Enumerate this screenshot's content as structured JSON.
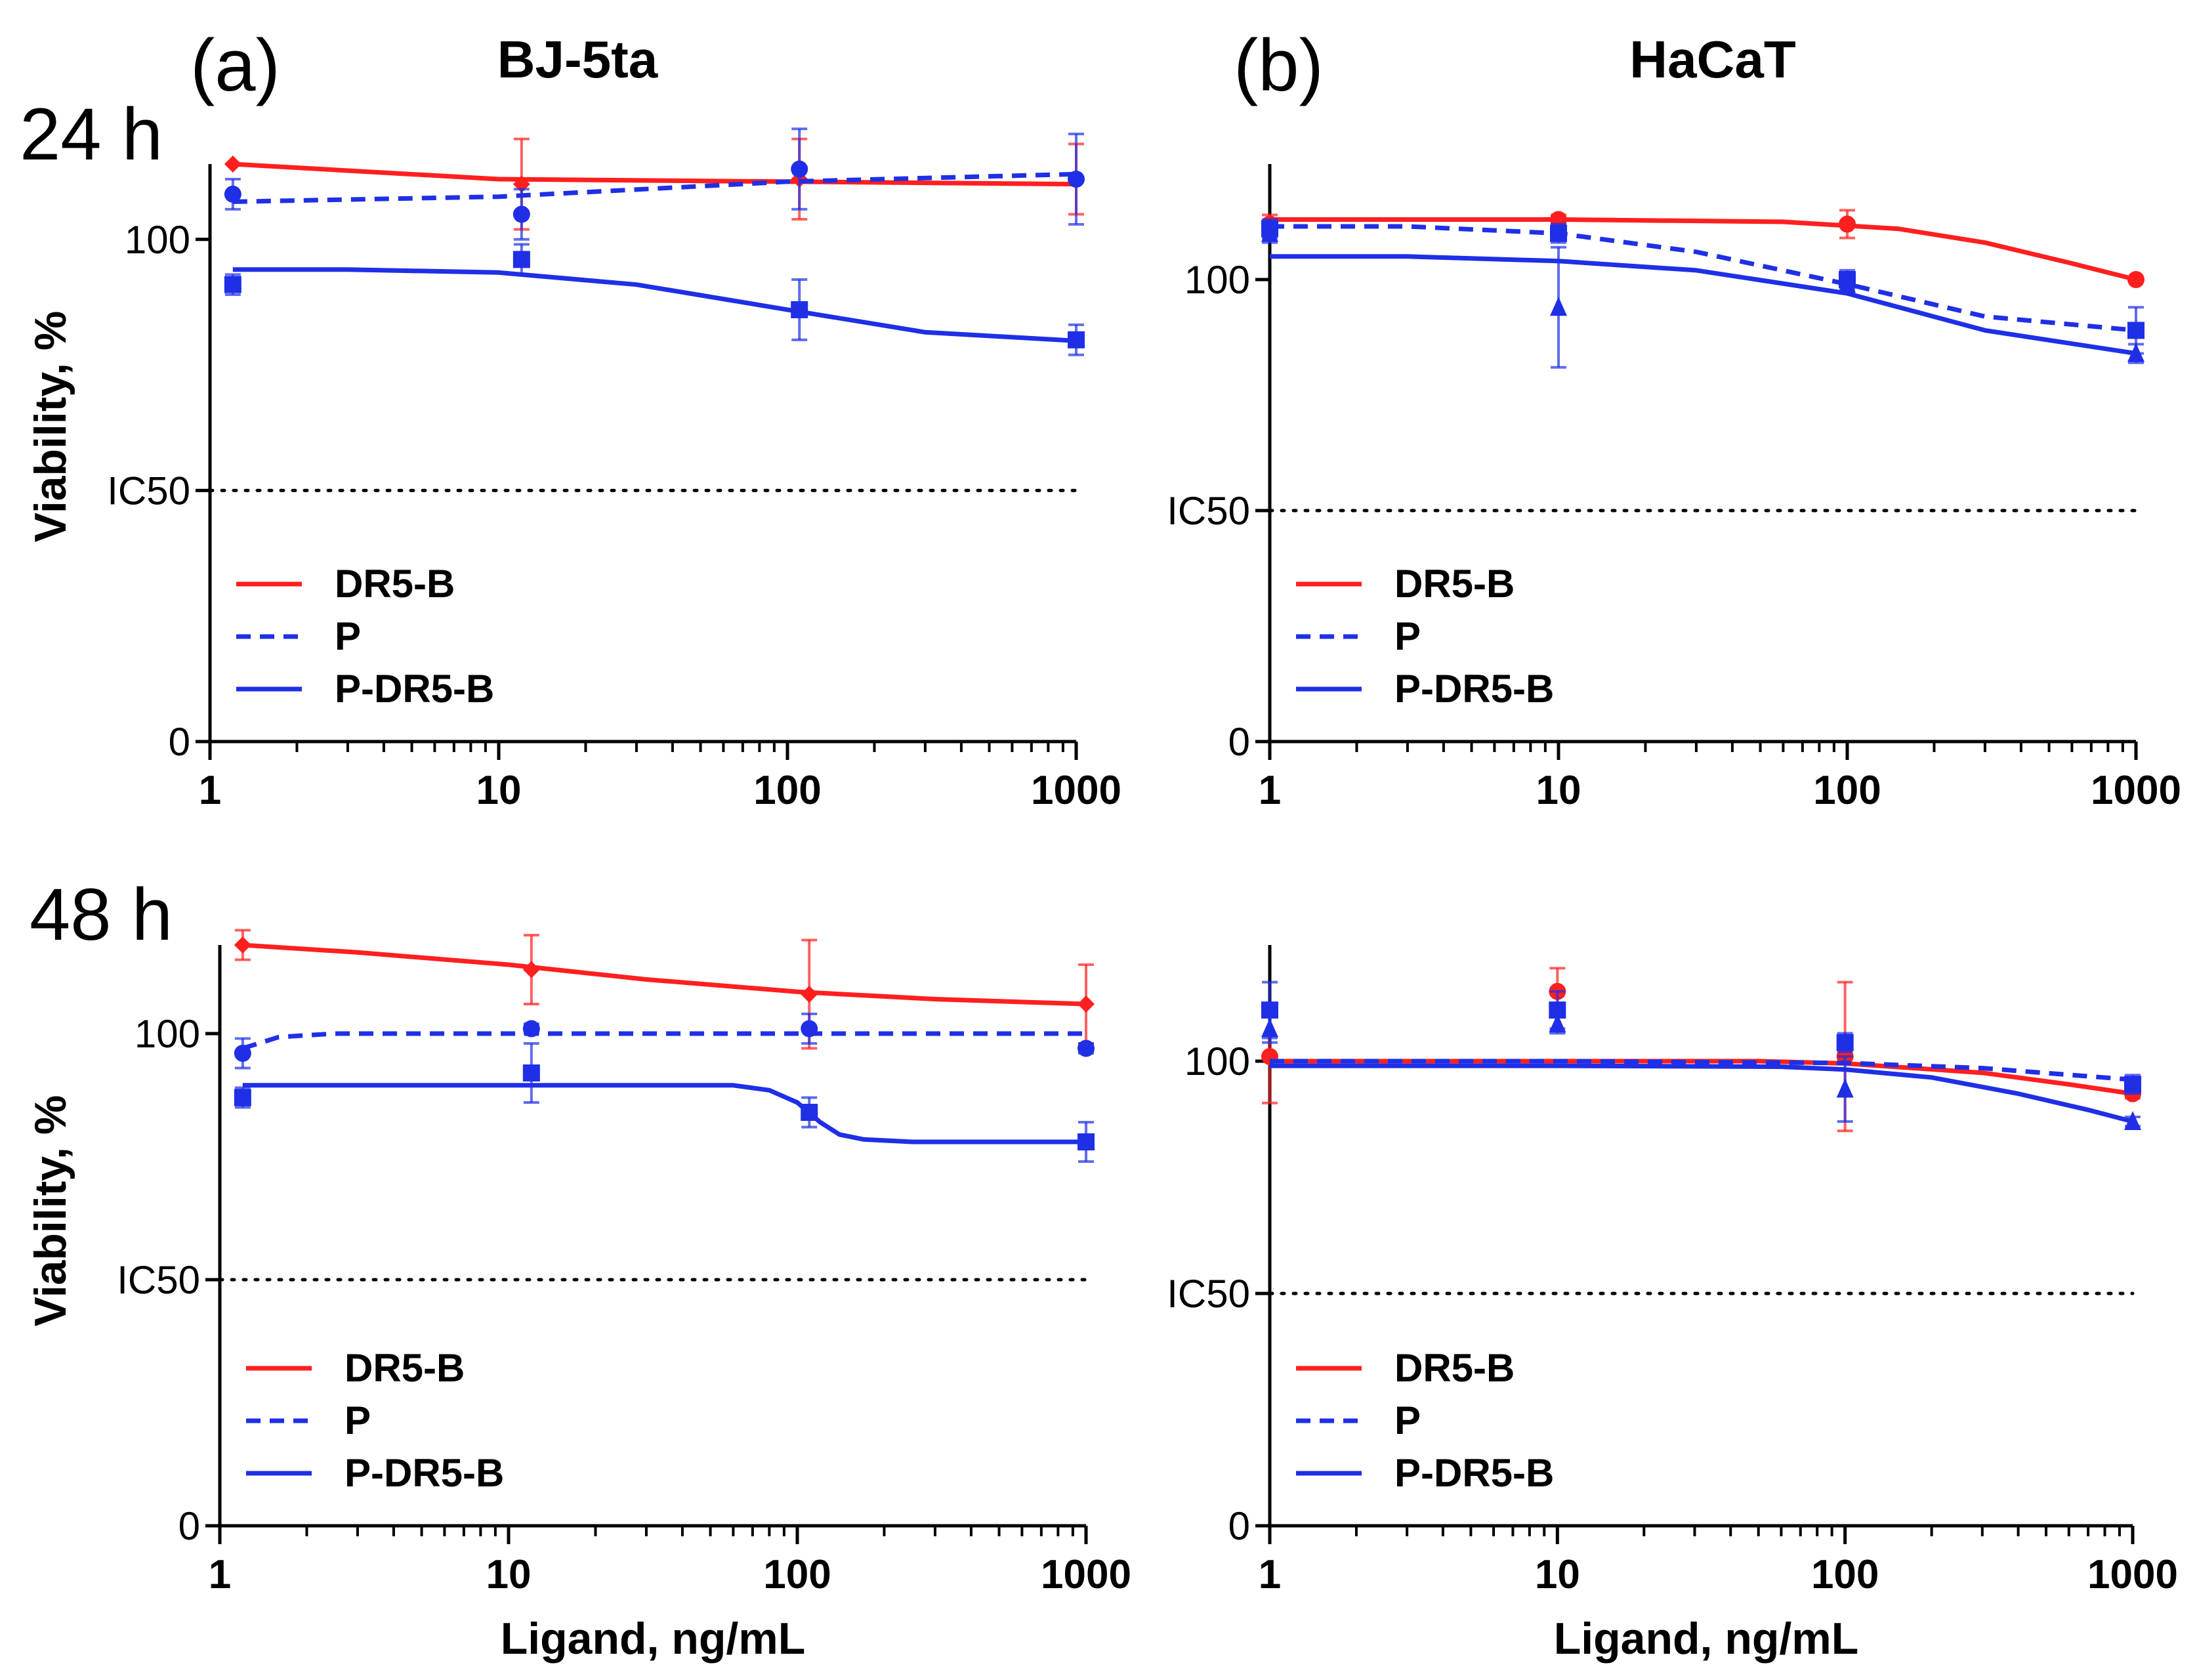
{
  "figure": {
    "panel_a_label": "(a)",
    "panel_b_label": "(b)",
    "col_a_title": "BJ-5ta",
    "col_b_title": "HaCaT",
    "row1_label": "24 h",
    "row2_label": "48 h",
    "ylabel": "Viability, %",
    "xlabel": "Ligand, ng/mL",
    "ic50_label": "IC50"
  },
  "colors": {
    "dr5b": "#ff1f1f",
    "p": "#1f2fe6",
    "pdr5b": "#1f2fe6",
    "axis": "#000000"
  },
  "chart_data": [
    {
      "id": "bj5ta-24h",
      "type": "line",
      "title": "BJ-5ta",
      "row": "24 h",
      "xlabel": "",
      "ylabel": "Viability, %",
      "xscale": "log",
      "xlim": [
        1,
        1000
      ],
      "ylim": [
        0,
        115
      ],
      "xticks": [
        "1",
        "10",
        "100",
        "1000"
      ],
      "yticks": [
        "0",
        "IC50",
        "100"
      ],
      "ic50": 50,
      "legend": [
        "DR5-B",
        "P",
        "P-DR5-B"
      ],
      "legend_position": "bottom-left",
      "series": [
        {
          "name": "DR5-B",
          "style": "solid",
          "marker": "diamond",
          "x": [
            1.2,
            12,
            110,
            1000
          ],
          "y": [
            115,
            111,
            112,
            112
          ],
          "err": [
            0,
            9,
            8,
            7
          ],
          "fit_x": [
            1.2,
            10,
            100,
            1000
          ],
          "fit_y": [
            115,
            112,
            111.5,
            111
          ]
        },
        {
          "name": "P",
          "style": "dashed",
          "marker": "circle",
          "x": [
            1.2,
            12,
            110,
            1000
          ],
          "y": [
            109,
            105,
            114,
            112
          ],
          "err": [
            3,
            5,
            8,
            9
          ],
          "fit_x": [
            1.2,
            10,
            100,
            1000
          ],
          "fit_y": [
            107.5,
            108.5,
            111.5,
            113
          ]
        },
        {
          "name": "P-DR5-B",
          "style": "solid",
          "marker": "square",
          "x": [
            1.2,
            12,
            110,
            1000
          ],
          "y": [
            91,
            96,
            86,
            80
          ],
          "err": [
            2,
            3,
            6,
            3
          ],
          "fit_x": [
            1.2,
            3,
            10,
            30,
            100,
            300,
            1000
          ],
          "fit_y": [
            94,
            94,
            93.4,
            91,
            86,
            81.5,
            79.8
          ]
        }
      ]
    },
    {
      "id": "hacat-24h",
      "type": "line",
      "title": "HaCaT",
      "row": "24 h",
      "xlabel": "",
      "ylabel": "",
      "xscale": "log",
      "xlim": [
        1,
        1000
      ],
      "ylim": [
        0,
        125
      ],
      "xticks": [
        "1",
        "10",
        "100",
        "1000"
      ],
      "yticks": [
        "0",
        "IC50",
        "100"
      ],
      "ic50": 50,
      "legend": [
        "DR5-B",
        "P",
        "P-DR5-B"
      ],
      "legend_position": "bottom-left",
      "series": [
        {
          "name": "DR5-B",
          "style": "solid",
          "marker": "circle",
          "x": [
            1,
            10,
            100,
            1000
          ],
          "y": [
            112,
            113,
            112,
            100
          ],
          "err": [
            2,
            1,
            3,
            0
          ],
          "fit_x": [
            1,
            10,
            60,
            150,
            300,
            600,
            1000
          ],
          "fit_y": [
            113,
            113,
            112.5,
            111,
            108,
            103.5,
            100
          ]
        },
        {
          "name": "P",
          "style": "dashed",
          "marker": "square",
          "x": [
            1,
            10,
            100,
            1000
          ],
          "y": [
            111,
            110,
            100,
            89
          ],
          "err": [
            2,
            2,
            2,
            5
          ],
          "fit_x": [
            1,
            3,
            10,
            30,
            100,
            300,
            1000
          ],
          "fit_y": [
            111.5,
            111.5,
            110,
            106,
            99,
            92,
            89
          ]
        },
        {
          "name": "P-DR5-B",
          "style": "solid",
          "marker": "triangle",
          "x": [
            1,
            10,
            100,
            1000
          ],
          "y": [
            110,
            94,
            99,
            84
          ],
          "err": [
            2,
            13,
            2,
            2
          ],
          "fit_x": [
            1,
            3,
            10,
            30,
            100,
            300,
            1000
          ],
          "fit_y": [
            105,
            105,
            104,
            102,
            97,
            89,
            84
          ]
        }
      ]
    },
    {
      "id": "bj5ta-48h",
      "type": "line",
      "title": "BJ-5ta",
      "row": "48 h",
      "xlabel": "Ligand, ng/mL",
      "ylabel": "Viability, %",
      "xscale": "log",
      "xlim": [
        1,
        1000
      ],
      "ylim": [
        0,
        118
      ],
      "xticks": [
        "1",
        "10",
        "100",
        "1000"
      ],
      "yticks": [
        "0",
        "IC50",
        "100"
      ],
      "ic50": 50,
      "legend": [
        "DR5-B",
        "P",
        "P-DR5-B"
      ],
      "legend_position": "bottom-left",
      "series": [
        {
          "name": "DR5-B",
          "style": "solid",
          "marker": "diamond",
          "x": [
            1.2,
            12,
            110,
            1000
          ],
          "y": [
            118,
            113,
            108,
            106
          ],
          "err": [
            3,
            7,
            11,
            8
          ],
          "fit_x": [
            1.2,
            3,
            10,
            30,
            100,
            300,
            1000
          ],
          "fit_y": [
            118,
            116.5,
            114,
            111,
            108.5,
            107,
            106
          ]
        },
        {
          "name": "P",
          "style": "dashed",
          "marker": "circle",
          "x": [
            1.2,
            12,
            110,
            1000
          ],
          "y": [
            96,
            101,
            101,
            97
          ],
          "err": [
            3,
            1,
            3,
            1
          ],
          "fit_x": [
            1.2,
            1.6,
            2.5,
            10,
            100,
            1000
          ],
          "fit_y": [
            97,
            99.3,
            100,
            100,
            100,
            100
          ]
        },
        {
          "name": "P-DR5-B",
          "style": "solid",
          "marker": "square",
          "x": [
            1.2,
            12,
            110,
            1000
          ],
          "y": [
            87,
            92,
            84,
            78
          ],
          "err": [
            2,
            6,
            3,
            4
          ],
          "fit_x": [
            1.2,
            10,
            60,
            80,
            100,
            120,
            140,
            170,
            250,
            1000
          ],
          "fit_y": [
            89.5,
            89.5,
            89.5,
            88.5,
            86,
            82,
            79.5,
            78.5,
            78,
            78
          ]
        }
      ]
    },
    {
      "id": "hacat-48h",
      "type": "line",
      "title": "HaCaT",
      "row": "48 h",
      "xlabel": "Ligand, ng/mL",
      "ylabel": "",
      "xscale": "log",
      "xlim": [
        1,
        1000
      ],
      "ylim": [
        0,
        125
      ],
      "xticks": [
        "1",
        "10",
        "100",
        "1000"
      ],
      "yticks": [
        "0",
        "IC50",
        "100"
      ],
      "ic50": 50,
      "legend": [
        "DR5-B",
        "P",
        "P-DR5-B"
      ],
      "legend_position": "bottom-left",
      "series": [
        {
          "name": "DR5-B",
          "style": "solid",
          "marker": "circle",
          "x": [
            1,
            10,
            100,
            1000
          ],
          "y": [
            101,
            115,
            101,
            93
          ],
          "err": [
            10,
            5,
            16,
            1
          ],
          "fit_x": [
            1,
            10,
            50,
            100,
            300,
            600,
            1000
          ],
          "fit_y": [
            100,
            100,
            100,
            99.5,
            97.5,
            95,
            93
          ]
        },
        {
          "name": "P",
          "style": "dashed",
          "marker": "square",
          "x": [
            1,
            10,
            100,
            1000
          ],
          "y": [
            111,
            111,
            104,
            95
          ],
          "err": [
            6,
            4,
            2,
            2
          ],
          "fit_x": [
            1,
            10,
            100,
            300,
            1000
          ],
          "fit_y": [
            100,
            100,
            99.6,
            98.5,
            96
          ]
        },
        {
          "name": "P-DR5-B",
          "style": "solid",
          "marker": "triangle",
          "x": [
            1,
            10,
            100,
            1000
          ],
          "y": [
            107,
            108,
            94,
            87
          ],
          "err": [
            3,
            2,
            7,
            1
          ],
          "fit_x": [
            1,
            10,
            60,
            100,
            200,
            400,
            700,
            1000
          ],
          "fit_y": [
            99,
            99,
            98.8,
            98.2,
            96.5,
            93,
            89.5,
            87
          ]
        }
      ]
    }
  ]
}
